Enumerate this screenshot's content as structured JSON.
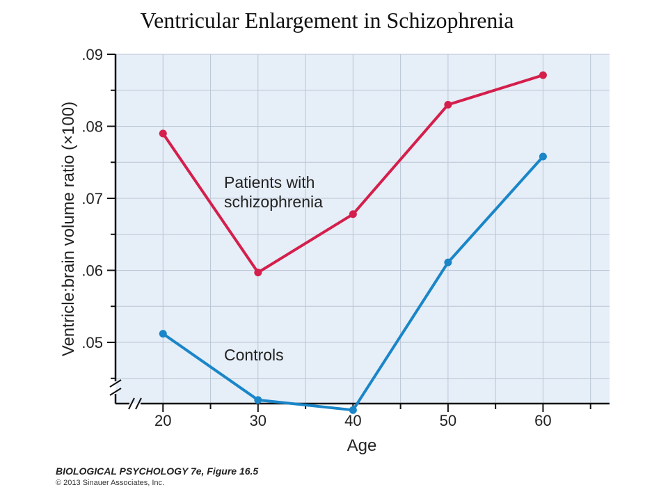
{
  "chart_data": {
    "type": "line",
    "title": "Ventricular Enlargement in Schizophrenia",
    "xlabel": "Age",
    "ylabel": "Ventricle:brain volume ratio (×100)",
    "x": [
      20,
      30,
      40,
      50,
      60
    ],
    "x_ticks": [
      "20",
      "30",
      "40",
      "50",
      "60"
    ],
    "y_ticks": [
      ".05",
      ".06",
      ".07",
      ".08",
      ".09"
    ],
    "xlim": [
      15,
      67
    ],
    "ylim": [
      0.0415,
      0.09
    ],
    "grid": true,
    "axis_break": true,
    "background_color": "#e6eef7",
    "series": [
      {
        "name": "Patients with schizophrenia",
        "label_lines": [
          "Patients with",
          "schizophrenia"
        ],
        "color": "#d41f4c",
        "values": [
          0.079,
          0.0597,
          0.0678,
          0.083,
          0.0871
        ]
      },
      {
        "name": "Controls",
        "label_lines": [
          "Controls"
        ],
        "color": "#1a86c8",
        "values": [
          0.0512,
          0.042,
          0.0406,
          0.0611,
          0.0758
        ]
      }
    ]
  },
  "footer": {
    "title": "BIOLOGICAL PSYCHOLOGY 7e, Figure 16.5",
    "copyright": "© 2013 Sinauer Associates, Inc."
  }
}
